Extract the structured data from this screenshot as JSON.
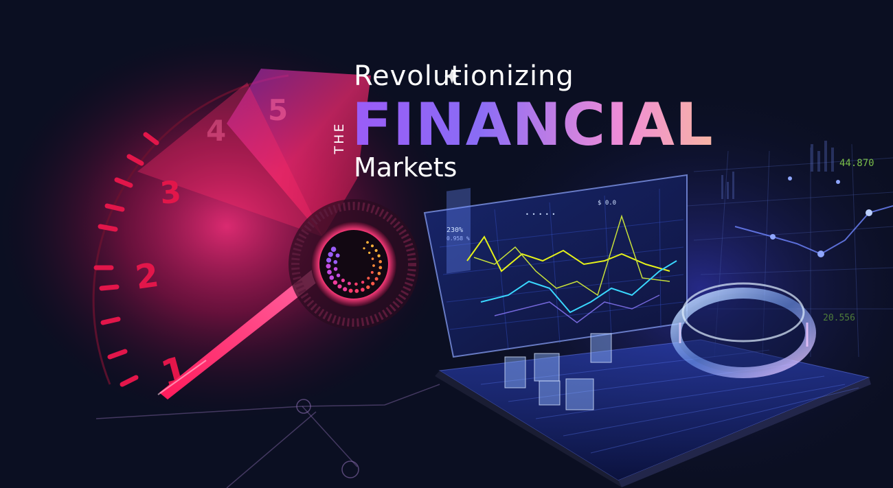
{
  "headline": {
    "line1": "Revolutionizing",
    "the": "THE",
    "line2": "FINANCIAL",
    "line3": "Markets"
  },
  "gauge": {
    "numbers": [
      "1",
      "2",
      "3",
      "4",
      "5"
    ]
  },
  "screen": {
    "top_label_left": "230%",
    "top_label_sub": "0.958 %",
    "top_label_mid": "• • • • •",
    "top_label_right": "$ 0.0"
  },
  "background_values": {
    "value_top": "44.870",
    "value_bottom": "20.556"
  },
  "colors": {
    "background": "#0b0f22",
    "gauge_red": "#e2164a",
    "gauge_pink": "#ff3f8a",
    "accent_purple": "#9b5cf7",
    "accent_pink": "#f08dd6",
    "chart_yellow": "#e6f21a",
    "chart_cyan": "#3ad8ff",
    "value_green": "#7bbf4a"
  },
  "icons": [
    "dotted-ring-logo-icon"
  ]
}
